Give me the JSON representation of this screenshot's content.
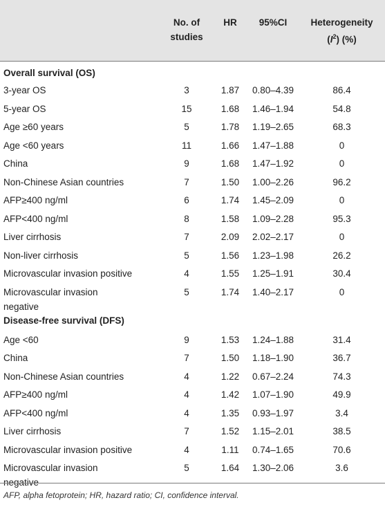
{
  "header": {
    "col_studies_1": "No. of",
    "col_studies_2": "studies",
    "col_hr": "HR",
    "col_ci": "95%CI",
    "col_het_1": "Heterogeneity",
    "col_het_2_pre": "(",
    "col_het_2_i": "I",
    "col_het_2_sup": "2",
    "col_het_2_post": ") (%)"
  },
  "os_section": {
    "title": "Overall survival (OS)",
    "rows": [
      {
        "label": "3-year OS",
        "n": "3",
        "hr": "1.87",
        "ci": "0.80–4.39",
        "het": "86.4"
      },
      {
        "label": "5-year OS",
        "n": "15",
        "hr": "1.68",
        "ci": "1.46–1.94",
        "het": "54.8"
      },
      {
        "label": "Age ≥60 years",
        "n": "5",
        "hr": "1.78",
        "ci": "1.19–2.65",
        "het": "68.3"
      },
      {
        "label": "Age <60 years",
        "n": "11",
        "hr": "1.66",
        "ci": "1.47–1.88",
        "het": "0"
      },
      {
        "label": "China",
        "n": "9",
        "hr": "1.68",
        "ci": "1.47–1.92",
        "het": "0"
      },
      {
        "label": "Non-Chinese Asian countries",
        "n": "7",
        "hr": "1.50",
        "ci": "1.00–2.26",
        "het": "96.2"
      },
      {
        "label": "AFP≥400 ng/ml",
        "n": "6",
        "hr": "1.74",
        "ci": "1.45–2.09",
        "het": "0"
      },
      {
        "label": "AFP<400 ng/ml",
        "n": "8",
        "hr": "1.58",
        "ci": "1.09–2.28",
        "het": "95.3"
      },
      {
        "label": "Liver cirrhosis",
        "n": "7",
        "hr": "2.09",
        "ci": "2.02–2.17",
        "het": "0"
      },
      {
        "label": "Non-liver cirrhosis",
        "n": "5",
        "hr": "1.56",
        "ci": "1.23–1.98",
        "het": "26.2"
      },
      {
        "label": "Microvascular invasion positive",
        "n": "4",
        "hr": "1.55",
        "ci": "1.25–1.91",
        "het": "30.4"
      },
      {
        "label_1": "Microvascular invasion",
        "label_2": "negative",
        "n": "5",
        "hr": "1.74",
        "ci": "1.40–2.17",
        "het": "0"
      }
    ]
  },
  "dfs_section": {
    "title": "Disease-free survival (DFS)",
    "rows": [
      {
        "label": "Age <60",
        "n": "9",
        "hr": "1.53",
        "ci": "1.24–1.88",
        "het": "31.4"
      },
      {
        "label": "China",
        "n": "7",
        "hr": "1.50",
        "ci": "1.18–1.90",
        "het": "36.7"
      },
      {
        "label": "Non-Chinese Asian countries",
        "n": "4",
        "hr": "1.22",
        "ci": "0.67–2.24",
        "het": "74.3"
      },
      {
        "label": "AFP≥400 ng/ml",
        "n": "4",
        "hr": "1.42",
        "ci": "1.07–1.90",
        "het": "49.9"
      },
      {
        "label": "AFP<400 ng/ml",
        "n": "4",
        "hr": "1.35",
        "ci": "0.93–1.97",
        "het": "3.4"
      },
      {
        "label": "Liver cirrhosis",
        "n": "7",
        "hr": "1.52",
        "ci": "1.15–2.01",
        "het": "38.5"
      },
      {
        "label": "Microvascular invasion positive",
        "n": "4",
        "hr": "1.11",
        "ci": "0.74–1.65",
        "het": "70.6"
      },
      {
        "label_1": "Microvascular invasion",
        "label_2": "negative",
        "n": "5",
        "hr": "1.64",
        "ci": "1.30–2.06",
        "het": "3.6"
      }
    ]
  },
  "footnote": "AFP, alpha fetoprotein; HR, hazard ratio; CI, confidence interval.",
  "colors": {
    "header_bg": "#e4e4e4",
    "rule": "#7a7a7a",
    "text": "#222222"
  }
}
